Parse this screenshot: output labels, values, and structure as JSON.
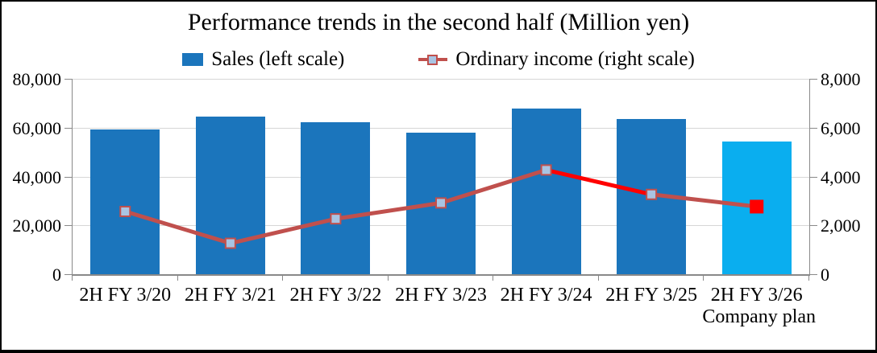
{
  "chart_data": {
    "type": "bar",
    "title": "Performance trends in the second half (Million yen)",
    "categories": [
      "2H FY 3/20",
      "2H FY 3/21",
      "2H FY 3/22",
      "2H FY 3/23",
      "2H FY 3/24",
      "2H FY 3/25",
      "2H FY 3/26"
    ],
    "category_sub_label": {
      "index": 6,
      "text": "Company plan"
    },
    "series": [
      {
        "name": "Sales (left scale)",
        "kind": "bar",
        "axis": "left",
        "values": [
          59500,
          65000,
          62500,
          58300,
          68000,
          64000,
          54500
        ],
        "bar_colors": [
          "#1B75BC",
          "#1B75BC",
          "#1B75BC",
          "#1B75BC",
          "#1B75BC",
          "#1B75BC",
          "#0AAEEF"
        ]
      },
      {
        "name": "Ordinary income (right scale)",
        "kind": "line",
        "axis": "right",
        "values": [
          2600,
          1300,
          2300,
          2950,
          4300,
          3300,
          2800
        ],
        "line_color": "#C0504D",
        "highlight_color": "#FF0000",
        "segment_colors": [
          "#C0504D",
          "#C0504D",
          "#C0504D",
          "#C0504D",
          "#FF0000",
          "#C0504D"
        ],
        "marker_fills": [
          "#A9C4E3",
          "#A9C4E3",
          "#A9C4E3",
          "#A9C4E3",
          "#A9C4E3",
          "#A9C4E3",
          "#FF0000"
        ],
        "marker_border": "#C0504D",
        "last_marker_border": "#FF0000"
      }
    ],
    "left_axis": {
      "min": 0,
      "max": 80000,
      "tick_values": [
        0,
        20000,
        40000,
        60000,
        80000
      ],
      "tick_labels": [
        "0",
        "20,000",
        "40,000",
        "60,000",
        "80,000"
      ]
    },
    "right_axis": {
      "min": 0,
      "max": 8000,
      "tick_values": [
        0,
        2000,
        4000,
        6000,
        8000
      ],
      "tick_labels": [
        "0",
        "2,000",
        "4,000",
        "6,000",
        "8,000"
      ]
    },
    "grid": true,
    "legend_position": "top",
    "style_colors": {
      "grid": "#D6D6D6",
      "axis": "#898989",
      "text": "#000000",
      "background": "#FFFFFF"
    }
  }
}
